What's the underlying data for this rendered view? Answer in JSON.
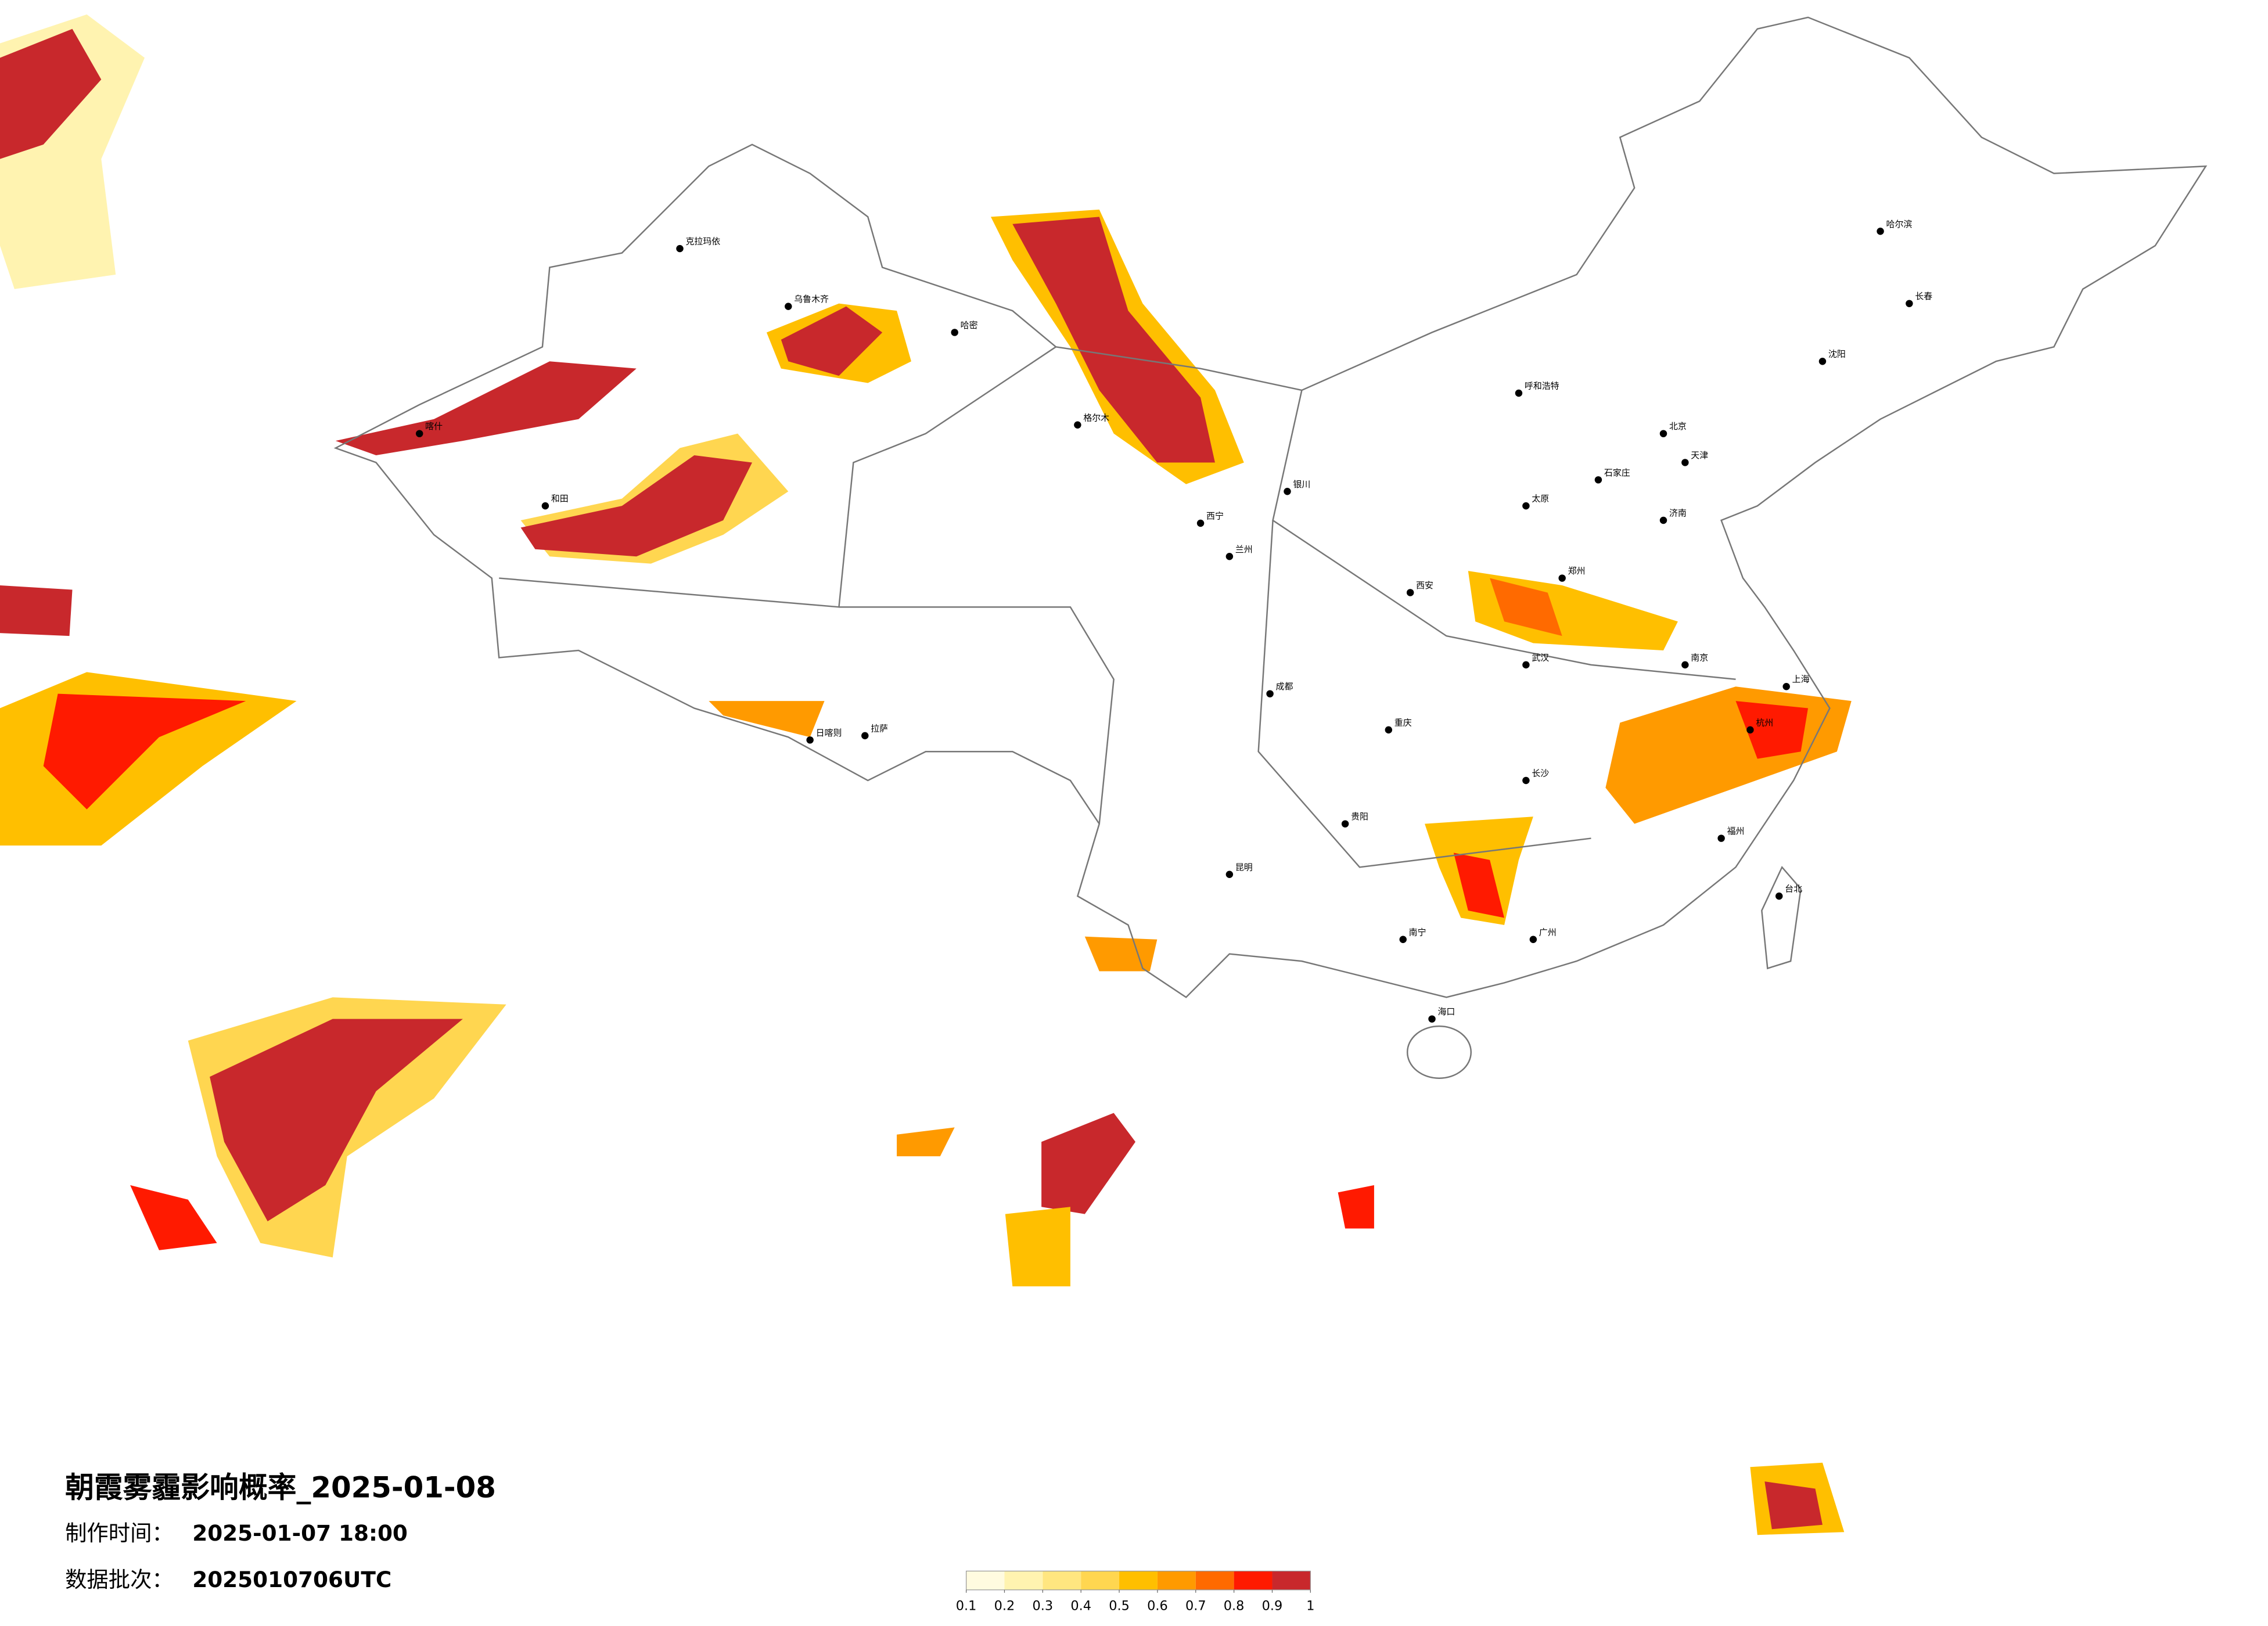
{
  "title": "朝霞雾霾影响概率_2025-01-08",
  "production_time": {
    "label": "制作时间：",
    "value": "2025-01-07 18:00"
  },
  "data_batch": {
    "label": "数据批次：",
    "value": "2025010706UTC"
  },
  "legend": {
    "ticks": [
      0.1,
      0.2,
      0.3,
      0.4,
      0.5,
      0.6,
      0.7,
      0.8,
      0.9,
      1
    ],
    "colors": [
      "#fffbe0",
      "#fff3b0",
      "#ffe680",
      "#ffd650",
      "#ffbf00",
      "#ff9a00",
      "#ff6a00",
      "#ff1a00",
      "#c8282c"
    ]
  },
  "cities": [
    "克拉玛依",
    "乌鲁木齐",
    "哈密",
    "喀什",
    "和田",
    "拉萨",
    "日喀则",
    "格尔木",
    "西宁",
    "兰州",
    "银川",
    "呼和浩特",
    "北京",
    "天津",
    "石家庄",
    "太原",
    "济南",
    "郑州",
    "西安",
    "成都",
    "重庆",
    "武汉",
    "长沙",
    "南京",
    "上海",
    "杭州",
    "福州",
    "广州",
    "南宁",
    "昆明",
    "贵阳",
    "海口",
    "哈尔滨",
    "长春",
    "沈阳",
    "台北"
  ]
}
